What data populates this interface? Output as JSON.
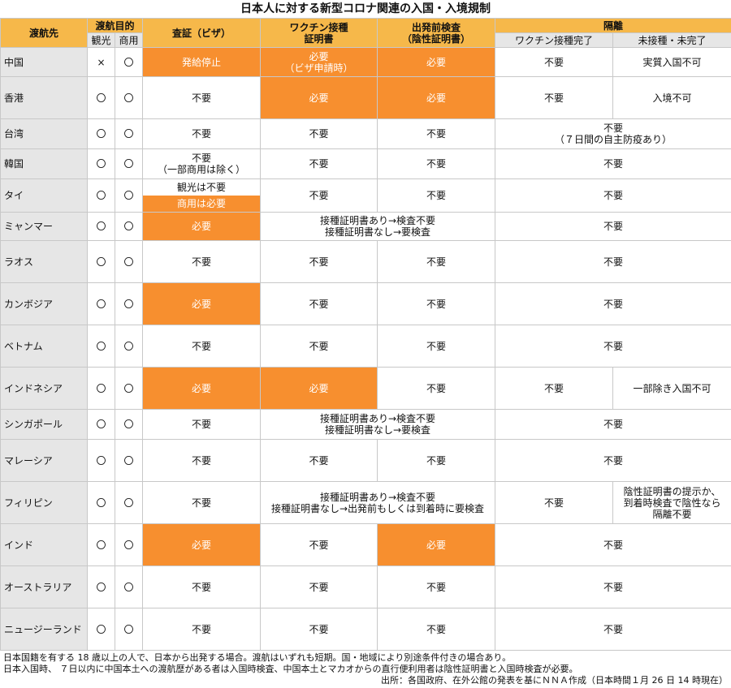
{
  "title": "日本人に対する新型コロナ関連の入国・入境規制",
  "colors": {
    "header": "#f6b84a",
    "highlight": "#f78f2f",
    "label_bg": "#e6e6e6"
  },
  "headers": {
    "destination": "渡航先",
    "purpose": "渡航目的",
    "tourism": "観光",
    "business": "商用",
    "visa": "査証（ビザ）",
    "vaccine_cert": [
      "ワクチン接種",
      "証明書"
    ],
    "pre_test": [
      "出発前検査",
      "（陰性証明書）"
    ],
    "quarantine": "隔離",
    "vaccinated": "ワクチン接種完了",
    "unvaccinated": "未接種・未完了"
  },
  "rows": [
    {
      "country": "中国",
      "tourism": "×",
      "business": "〇",
      "visa": "発給停止",
      "vaccine": [
        "必要",
        "（ビザ申請時）"
      ],
      "test": "必要",
      "q_vax": "不要",
      "q_unvax": "実質入国不可"
    },
    {
      "country": "香港",
      "tourism": "〇",
      "business": "〇",
      "visa": "不要",
      "vaccine": "必要",
      "test": "必要",
      "q_vax": "不要",
      "q_unvax": "入境不可"
    },
    {
      "country": "台湾",
      "tourism": "〇",
      "business": "〇",
      "visa": "不要",
      "vaccine": "不要",
      "test": "不要",
      "quarantine": [
        "不要",
        "（７日間の自主防疫あり）"
      ]
    },
    {
      "country": "韓国",
      "tourism": "〇",
      "business": "〇",
      "visa": [
        "不要",
        "（一部商用は除く）"
      ],
      "vaccine": "不要",
      "test": "不要",
      "quarantine": "不要"
    },
    {
      "country": "タイ",
      "tourism": "〇",
      "business": "〇",
      "visa_top": "観光は不要",
      "visa_bottom": "商用は必要",
      "vaccine": "不要",
      "test": "不要",
      "quarantine": "不要"
    },
    {
      "country": "ミャンマー",
      "tourism": "〇",
      "business": "〇",
      "visa": "必要",
      "vaccine_test": [
        "接種証明書あり→検査不要",
        "接種証明書なし→要検査"
      ],
      "quarantine": "不要"
    },
    {
      "country": "ラオス",
      "tourism": "〇",
      "business": "〇",
      "visa": "不要",
      "vaccine": "不要",
      "test": "不要",
      "quarantine": "不要"
    },
    {
      "country": "カンボジア",
      "tourism": "〇",
      "business": "〇",
      "visa": "必要",
      "vaccine": "不要",
      "test": "不要",
      "quarantine": "不要"
    },
    {
      "country": "ベトナム",
      "tourism": "〇",
      "business": "〇",
      "visa": "不要",
      "vaccine": "不要",
      "test": "不要",
      "quarantine": "不要"
    },
    {
      "country": "インドネシア",
      "tourism": "〇",
      "business": "〇",
      "visa": "必要",
      "vaccine": "必要",
      "test": "不要",
      "q_vax": "不要",
      "q_unvax": "一部除き入国不可"
    },
    {
      "country": "シンガポール",
      "tourism": "〇",
      "business": "〇",
      "visa": "不要",
      "vaccine_test": [
        "接種証明書あり→検査不要",
        "接種証明書なし→要検査"
      ],
      "quarantine": "不要"
    },
    {
      "country": "マレーシア",
      "tourism": "〇",
      "business": "〇",
      "visa": "不要",
      "vaccine": "不要",
      "test": "不要",
      "quarantine": "不要"
    },
    {
      "country": "フィリピン",
      "tourism": "〇",
      "business": "〇",
      "visa": "不要",
      "vaccine_test": [
        "接種証明書あり→検査不要",
        "接種証明書なし→出発前もしくは到着時に要検査"
      ],
      "q_vax": "不要",
      "q_unvax": [
        "陰性証明書の提示か、",
        "到着時検査で陰性なら",
        "隔離不要"
      ]
    },
    {
      "country": "インド",
      "tourism": "〇",
      "business": "〇",
      "visa": "必要",
      "vaccine": "不要",
      "test": "必要",
      "quarantine": "不要"
    },
    {
      "country": "オーストラリア",
      "tourism": "〇",
      "business": "〇",
      "visa": "不要",
      "vaccine": "不要",
      "test": "不要",
      "quarantine": "不要"
    },
    {
      "country": "ニュージーランド",
      "tourism": "〇",
      "business": "〇",
      "visa": "不要",
      "vaccine": "不要",
      "test": "不要",
      "quarantine": "不要"
    }
  ],
  "notes": [
    "日本国籍を有する 18 歳以上の人で、日本から出発する場合。渡航はいずれも短期。国・地域により別途条件付きの場合あり。",
    "日本入国時、 ７日以内に中国本土への渡航歴がある者は入国時検査、中国本土とマカオからの直行便利用者は陰性証明書と入国時検査が必要。"
  ],
  "source": "出所：各国政府、在外公館の発表を基にＮＮＡ作成（日本時間１月 26 日 14 時現在）"
}
